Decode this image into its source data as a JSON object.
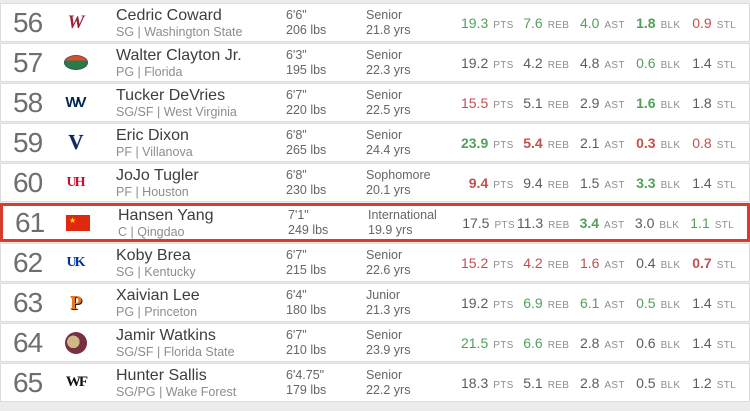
{
  "colors": {
    "stat_green": "#53a05a",
    "stat_red": "#c4504b",
    "stat_gray": "#5b5b5b",
    "highlight_border": "#d83b31",
    "row_border": "#dcdcdc"
  },
  "stat_labels": [
    "PTS",
    "REB",
    "AST",
    "BLK",
    "STL"
  ],
  "rows": [
    {
      "rank": "56",
      "name": "Cedric Coward",
      "position_school": "SG | Washington State",
      "height": "6'6\"",
      "weight": "206 lbs",
      "class_year": "Senior",
      "age": "21.8 yrs",
      "highlighted": false,
      "logo": {
        "icon": "washington-state-cougars-logo",
        "class": "logo-washington-state",
        "label": "W"
      },
      "stats": [
        {
          "value": "19.3",
          "label": "PTS",
          "color": "green",
          "bold": false
        },
        {
          "value": "7.6",
          "label": "REB",
          "color": "green",
          "bold": false
        },
        {
          "value": "4.0",
          "label": "AST",
          "color": "green",
          "bold": false
        },
        {
          "value": "1.8",
          "label": "BLK",
          "color": "green",
          "bold": true
        },
        {
          "value": "0.9",
          "label": "STL",
          "color": "red",
          "bold": false
        }
      ]
    },
    {
      "rank": "57",
      "name": "Walter Clayton Jr.",
      "position_school": "PG | Florida",
      "height": "6'3\"",
      "weight": "195 lbs",
      "class_year": "Senior",
      "age": "22.3 yrs",
      "highlighted": false,
      "logo": {
        "icon": "florida-gators-logo",
        "class": "logo-florida",
        "label": ""
      },
      "stats": [
        {
          "value": "19.2",
          "label": "PTS",
          "color": "gray",
          "bold": false
        },
        {
          "value": "4.2",
          "label": "REB",
          "color": "gray",
          "bold": false
        },
        {
          "value": "4.8",
          "label": "AST",
          "color": "gray",
          "bold": false
        },
        {
          "value": "0.6",
          "label": "BLK",
          "color": "green",
          "bold": false
        },
        {
          "value": "1.4",
          "label": "STL",
          "color": "gray",
          "bold": false
        }
      ]
    },
    {
      "rank": "58",
      "name": "Tucker DeVries",
      "position_school": "SG/SF | West Virginia",
      "height": "6'7\"",
      "weight": "220 lbs",
      "class_year": "Senior",
      "age": "22.5 yrs",
      "highlighted": false,
      "logo": {
        "icon": "west-virginia-logo",
        "class": "logo-west-virginia",
        "label": "WV"
      },
      "stats": [
        {
          "value": "15.5",
          "label": "PTS",
          "color": "red",
          "bold": false
        },
        {
          "value": "5.1",
          "label": "REB",
          "color": "gray",
          "bold": false
        },
        {
          "value": "2.9",
          "label": "AST",
          "color": "gray",
          "bold": false
        },
        {
          "value": "1.6",
          "label": "BLK",
          "color": "green",
          "bold": true
        },
        {
          "value": "1.8",
          "label": "STL",
          "color": "gray",
          "bold": false
        }
      ]
    },
    {
      "rank": "59",
      "name": "Eric Dixon",
      "position_school": "PF | Villanova",
      "height": "6'8\"",
      "weight": "265 lbs",
      "class_year": "Senior",
      "age": "24.4 yrs",
      "highlighted": false,
      "logo": {
        "icon": "villanova-logo",
        "class": "logo-villanova",
        "label": "V"
      },
      "stats": [
        {
          "value": "23.9",
          "label": "PTS",
          "color": "green",
          "bold": true
        },
        {
          "value": "5.4",
          "label": "REB",
          "color": "red",
          "bold": true
        },
        {
          "value": "2.1",
          "label": "AST",
          "color": "gray",
          "bold": false
        },
        {
          "value": "0.3",
          "label": "BLK",
          "color": "red",
          "bold": true
        },
        {
          "value": "0.8",
          "label": "STL",
          "color": "red",
          "bold": false
        }
      ]
    },
    {
      "rank": "60",
      "name": "JoJo Tugler",
      "position_school": "PF | Houston",
      "height": "6'8\"",
      "weight": "230 lbs",
      "class_year": "Sophomore",
      "age": "20.1 yrs",
      "highlighted": false,
      "logo": {
        "icon": "houston-cougars-logo",
        "class": "logo-houston",
        "label": "UH"
      },
      "stats": [
        {
          "value": "9.4",
          "label": "PTS",
          "color": "red",
          "bold": true
        },
        {
          "value": "9.4",
          "label": "REB",
          "color": "gray",
          "bold": false
        },
        {
          "value": "1.5",
          "label": "AST",
          "color": "gray",
          "bold": false
        },
        {
          "value": "3.3",
          "label": "BLK",
          "color": "green",
          "bold": true
        },
        {
          "value": "1.4",
          "label": "STL",
          "color": "gray",
          "bold": false
        }
      ]
    },
    {
      "rank": "61",
      "name": "Hansen Yang",
      "position_school": "C | Qingdao",
      "height": "7'1\"",
      "weight": "249 lbs",
      "class_year": "International",
      "age": "19.9 yrs",
      "highlighted": true,
      "logo": {
        "icon": "china-flag",
        "class": "logo-china",
        "label": "★"
      },
      "stats": [
        {
          "value": "17.5",
          "label": "PTS",
          "color": "gray",
          "bold": false
        },
        {
          "value": "11.3",
          "label": "REB",
          "color": "gray",
          "bold": false
        },
        {
          "value": "3.4",
          "label": "AST",
          "color": "green",
          "bold": true
        },
        {
          "value": "3.0",
          "label": "BLK",
          "color": "gray",
          "bold": false
        },
        {
          "value": "1.1",
          "label": "STL",
          "color": "green",
          "bold": false
        }
      ]
    },
    {
      "rank": "62",
      "name": "Koby Brea",
      "position_school": "SG | Kentucky",
      "height": "6'7\"",
      "weight": "215 lbs",
      "class_year": "Senior",
      "age": "22.6 yrs",
      "highlighted": false,
      "logo": {
        "icon": "kentucky-wildcats-logo",
        "class": "logo-kentucky",
        "label": "UK"
      },
      "stats": [
        {
          "value": "15.2",
          "label": "PTS",
          "color": "red",
          "bold": false
        },
        {
          "value": "4.2",
          "label": "REB",
          "color": "red",
          "bold": false
        },
        {
          "value": "1.6",
          "label": "AST",
          "color": "red",
          "bold": false
        },
        {
          "value": "0.4",
          "label": "BLK",
          "color": "gray",
          "bold": false
        },
        {
          "value": "0.7",
          "label": "STL",
          "color": "red",
          "bold": true
        }
      ]
    },
    {
      "rank": "63",
      "name": "Xaivian Lee",
      "position_school": "PG | Princeton",
      "height": "6'4\"",
      "weight": "180 lbs",
      "class_year": "Junior",
      "age": "21.3 yrs",
      "highlighted": false,
      "logo": {
        "icon": "princeton-tigers-logo",
        "class": "logo-princeton",
        "label": "P"
      },
      "stats": [
        {
          "value": "19.2",
          "label": "PTS",
          "color": "gray",
          "bold": false
        },
        {
          "value": "6.9",
          "label": "REB",
          "color": "green",
          "bold": false
        },
        {
          "value": "6.1",
          "label": "AST",
          "color": "green",
          "bold": false
        },
        {
          "value": "0.5",
          "label": "BLK",
          "color": "green",
          "bold": false
        },
        {
          "value": "1.4",
          "label": "STL",
          "color": "gray",
          "bold": false
        }
      ]
    },
    {
      "rank": "64",
      "name": "Jamir Watkins",
      "position_school": "SG/SF | Florida State",
      "height": "6'7\"",
      "weight": "210 lbs",
      "class_year": "Senior",
      "age": "23.9 yrs",
      "highlighted": false,
      "logo": {
        "icon": "florida-state-seminoles-logo",
        "class": "logo-florida-state",
        "label": ""
      },
      "stats": [
        {
          "value": "21.5",
          "label": "PTS",
          "color": "green",
          "bold": false
        },
        {
          "value": "6.6",
          "label": "REB",
          "color": "green",
          "bold": false
        },
        {
          "value": "2.8",
          "label": "AST",
          "color": "gray",
          "bold": false
        },
        {
          "value": "0.6",
          "label": "BLK",
          "color": "gray",
          "bold": false
        },
        {
          "value": "1.4",
          "label": "STL",
          "color": "gray",
          "bold": false
        }
      ]
    },
    {
      "rank": "65",
      "name": "Hunter Sallis",
      "position_school": "SG/PG | Wake Forest",
      "height": "6'4.75\"",
      "weight": "179 lbs",
      "class_year": "Senior",
      "age": "22.2 yrs",
      "highlighted": false,
      "logo": {
        "icon": "wake-forest-logo",
        "class": "logo-wake-forest",
        "label": "WF"
      },
      "stats": [
        {
          "value": "18.3",
          "label": "PTS",
          "color": "gray",
          "bold": false
        },
        {
          "value": "5.1",
          "label": "REB",
          "color": "gray",
          "bold": false
        },
        {
          "value": "2.8",
          "label": "AST",
          "color": "gray",
          "bold": false
        },
        {
          "value": "0.5",
          "label": "BLK",
          "color": "gray",
          "bold": false
        },
        {
          "value": "1.2",
          "label": "STL",
          "color": "gray",
          "bold": false
        }
      ]
    }
  ]
}
